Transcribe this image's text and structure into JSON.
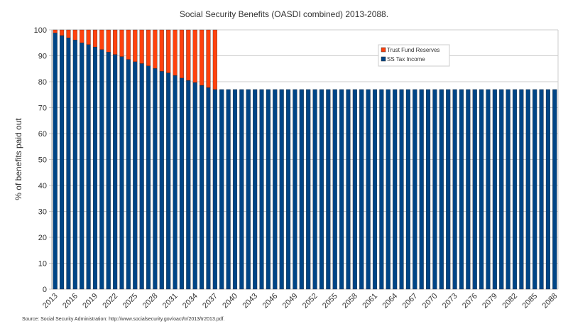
{
  "chart_data": {
    "type": "bar",
    "stacked": true,
    "title": "Social Security Benefits (OASDI combined) 2013-2088.",
    "xlabel": "",
    "ylabel": "% of benefits paid out",
    "ylim": [
      0,
      100
    ],
    "yticks": [
      0,
      10,
      20,
      30,
      40,
      50,
      60,
      70,
      80,
      90,
      100
    ],
    "grid": true,
    "legend_position": "top-right",
    "first_year": 2013,
    "last_year": 2088,
    "xtick_step": 3,
    "series": [
      {
        "name": "SS Tax Income",
        "color": "#004586",
        "values": [
          98.8,
          97.8,
          96.9,
          96.1,
          95.0,
          94.3,
          93.4,
          92.4,
          91.4,
          90.5,
          89.7,
          88.6,
          87.7,
          87.0,
          86.1,
          85.1,
          84.0,
          83.4,
          82.4,
          81.4,
          80.5,
          79.7,
          78.6,
          77.7,
          77.0,
          77,
          77,
          77,
          77,
          77,
          77,
          77,
          77,
          77,
          77,
          77,
          77,
          77,
          77,
          77,
          77,
          77,
          77,
          77,
          77,
          77,
          77,
          77,
          77,
          77,
          77,
          77,
          77,
          77,
          77,
          77,
          77,
          77,
          77,
          77,
          77,
          77,
          77,
          77,
          77,
          77,
          77,
          77,
          77,
          77,
          77,
          77,
          77,
          77,
          77,
          77
        ]
      },
      {
        "name": "Trust Fund Reserves",
        "color": "#ff420e",
        "values": [
          1.2,
          2.2,
          3.1,
          3.9,
          5.0,
          5.7,
          6.6,
          7.6,
          8.6,
          9.5,
          10.3,
          11.4,
          12.3,
          13.0,
          13.9,
          14.9,
          16.0,
          16.6,
          17.6,
          18.6,
          19.5,
          20.3,
          21.4,
          22.3,
          23.0,
          0,
          0,
          0,
          0,
          0,
          0,
          0,
          0,
          0,
          0,
          0,
          0,
          0,
          0,
          0,
          0,
          0,
          0,
          0,
          0,
          0,
          0,
          0,
          0,
          0,
          0,
          0,
          0,
          0,
          0,
          0,
          0,
          0,
          0,
          0,
          0,
          0,
          0,
          0,
          0,
          0,
          0,
          0,
          0,
          0,
          0,
          0,
          0,
          0,
          0,
          0
        ]
      }
    ],
    "source_note": "Source: Social Security Administration: http://www.socialsecurity.gov/oact/tr/2013/tr2013.pdf."
  }
}
